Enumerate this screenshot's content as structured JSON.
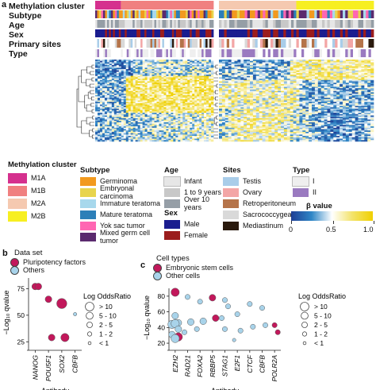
{
  "figure": {
    "panel_a": "a",
    "panel_b": "b",
    "panel_c": "c"
  },
  "annotation_rows": [
    "Methylation cluster",
    "Subtype",
    "Age",
    "Sex",
    "Primary sites",
    "Type"
  ],
  "legends": {
    "methylation": {
      "title": "Methylation cluster",
      "items": [
        {
          "label": "M1A",
          "color": "#d5308e"
        },
        {
          "label": "M1B",
          "color": "#f08080"
        },
        {
          "label": "M2A",
          "color": "#f5c9b0"
        },
        {
          "label": "M2B",
          "color": "#f7ef21"
        }
      ]
    },
    "subtype": {
      "title": "Subtype",
      "items": [
        {
          "label": "Germinoma",
          "color": "#f29a1e"
        },
        {
          "label": "Embryonal carcinoma",
          "color": "#e8d44d"
        },
        {
          "label": "Immature teratoma",
          "color": "#a7d8ec"
        },
        {
          "label": "Mature teratoma",
          "color": "#2c7fb8"
        },
        {
          "label": "Yok sac tumor",
          "color": "#ff66b2"
        },
        {
          "label": "Mixed germ cell tumor",
          "color": "#5b2a6e"
        }
      ]
    },
    "age": {
      "title": "Age",
      "items": [
        {
          "label": "Infant",
          "color": "#e6e6e6"
        },
        {
          "label": "1 to 9 years",
          "color": "#c8c8c8"
        },
        {
          "label": "Over 10 years",
          "color": "#959ea6"
        }
      ]
    },
    "sex": {
      "title": "Sex",
      "items": [
        {
          "label": "Male",
          "color": "#1b1d8f"
        },
        {
          "label": "Female",
          "color": "#9b1d1d"
        }
      ]
    },
    "sites": {
      "title": "Sites",
      "items": [
        {
          "label": "Testis",
          "color": "#a9cde9"
        },
        {
          "label": "Ovary",
          "color": "#f3a6a6"
        },
        {
          "label": "Retroperitoneum",
          "color": "#b5744a"
        },
        {
          "label": "Sacrococcygeal",
          "color": "#d9d9d9"
        },
        {
          "label": "Mediastinum",
          "color": "#2a1a0e"
        }
      ]
    },
    "type": {
      "title": "Type",
      "items": [
        {
          "label": "I",
          "color": "#efefef"
        },
        {
          "label": "II",
          "color": "#9a7ac0"
        }
      ]
    },
    "beta": {
      "title": "β value",
      "ticks": [
        "0",
        "0.5",
        "1.0"
      ],
      "colors": [
        "#1f3f95",
        "#2f86c6",
        "#ffffff",
        "#f3e36a",
        "#f0d000"
      ]
    }
  },
  "panel_b": {
    "legend_title": "Data set",
    "legend_items": [
      {
        "label": "Pluripotency factors",
        "color": "#c2185b"
      },
      {
        "label": "Others",
        "color": "#a8d3ea"
      }
    ],
    "size_legend_title": "Log OddsRatio",
    "size_legend_items": [
      "> 10",
      "5 - 10",
      "2 - 5",
      "1 - 2",
      "< 1"
    ],
    "xlabel": "Antibody",
    "ylabel": "−Log₁₀ qvalue",
    "y_ticks": [
      "75",
      "50",
      "25"
    ]
  },
  "panel_c": {
    "legend_title": "Cell types",
    "legend_items": [
      {
        "label": "Embryonic stem cells",
        "color": "#c2185b"
      },
      {
        "label": "Other cells",
        "color": "#a8d3ea"
      }
    ],
    "size_legend_title": "Log OddsRatio",
    "size_legend_items": [
      "> 10",
      "5 - 10",
      "2 - 5",
      "1 - 2",
      "< 1"
    ],
    "xlabel": "Antibody",
    "ylabel": "−Log₁₀ qvalue",
    "y_ticks": [
      "80",
      "60",
      "40",
      "20"
    ]
  },
  "chart_data": [
    {
      "type": "scatter",
      "title": "",
      "xlabel": "Antibody",
      "ylabel": "−Log10 qvalue",
      "categories": [
        "NANOG",
        "POU5F1",
        "SOX2",
        "CBFB"
      ],
      "ylim": [
        20,
        85
      ],
      "yticks": [
        25,
        50,
        75
      ],
      "series": [
        {
          "name": "Pluripotency factors",
          "color": "#c2185b",
          "points": [
            {
              "x": "NANOG",
              "y": 77,
              "size": 3
            },
            {
              "x": "NANOG",
              "y": 77,
              "size": 3
            },
            {
              "x": "POU5F1",
              "y": 65,
              "size": 3
            },
            {
              "x": "POU5F1",
              "y": 29,
              "size": 3
            },
            {
              "x": "SOX2",
              "y": 61,
              "size": 5
            },
            {
              "x": "SOX2",
              "y": 29,
              "size": 4
            }
          ]
        },
        {
          "name": "Others",
          "color": "#a8d3ea",
          "points": [
            {
              "x": "CBFB",
              "y": 51,
              "size": 1
            }
          ]
        }
      ]
    },
    {
      "type": "scatter",
      "title": "",
      "xlabel": "Antibody",
      "ylabel": "−Log10 qvalue",
      "categories": [
        "EZH2",
        "RAD21",
        "FOXA2",
        "RBBP5",
        "STAG1",
        "E2F1",
        "CTCF",
        "CBFB",
        "POLR2A"
      ],
      "ylim": [
        15,
        90
      ],
      "yticks": [
        20,
        40,
        60,
        80
      ],
      "series": [
        {
          "name": "Embryonic stem cells",
          "color": "#c2185b",
          "points": [
            {
              "x": "EZH2",
              "y": 85,
              "size": 4
            },
            {
              "x": "EZH2",
              "y": 28,
              "size": 4
            },
            {
              "x": "RBBP5",
              "y": 78,
              "size": 3
            },
            {
              "x": "RBBP5",
              "y": 52,
              "size": 3
            },
            {
              "x": "POLR2A",
              "y": 43,
              "size": 2
            },
            {
              "x": "POLR2A",
              "y": 34,
              "size": 2
            }
          ]
        },
        {
          "name": "Other cells",
          "color": "#a8d3ea",
          "points": [
            {
              "x": "EZH2",
              "y": 55,
              "size": 3
            },
            {
              "x": "EZH2",
              "y": 46,
              "size": 3
            },
            {
              "x": "EZH2",
              "y": 44,
              "size": 4
            },
            {
              "x": "EZH2",
              "y": 45,
              "size": 4
            },
            {
              "x": "EZH2",
              "y": 38,
              "size": 3
            },
            {
              "x": "EZH2",
              "y": 31,
              "size": 3
            },
            {
              "x": "EZH2",
              "y": 26,
              "size": 4
            },
            {
              "x": "RAD21",
              "y": 79,
              "size": 2
            },
            {
              "x": "RAD21",
              "y": 47,
              "size": 3
            },
            {
              "x": "RAD21",
              "y": 34,
              "size": 2
            },
            {
              "x": "FOXA2",
              "y": 73,
              "size": 2
            },
            {
              "x": "FOXA2",
              "y": 48,
              "size": 3
            },
            {
              "x": "FOXA2",
              "y": 38,
              "size": 2
            },
            {
              "x": "STAG1",
              "y": 75,
              "size": 2
            },
            {
              "x": "STAG1",
              "y": 67,
              "size": 2
            },
            {
              "x": "STAG1",
              "y": 52,
              "size": 2
            },
            {
              "x": "STAG1",
              "y": 38,
              "size": 2
            },
            {
              "x": "E2F1",
              "y": 57,
              "size": 2
            },
            {
              "x": "E2F1",
              "y": 36,
              "size": 2
            },
            {
              "x": "E2F1",
              "y": 24,
              "size": 1
            },
            {
              "x": "CTCF",
              "y": 70,
              "size": 2
            },
            {
              "x": "CTCF",
              "y": 41,
              "size": 2
            },
            {
              "x": "CBFB",
              "y": 65,
              "size": 2
            },
            {
              "x": "CBFB",
              "y": 43,
              "size": 2
            }
          ]
        }
      ]
    }
  ]
}
